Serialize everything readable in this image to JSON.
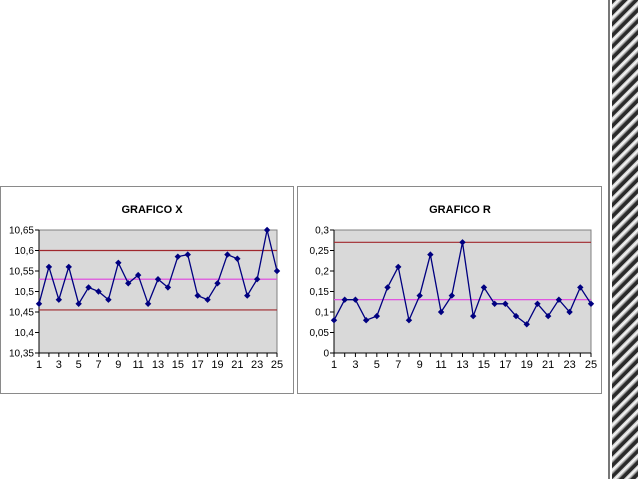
{
  "colors": {
    "plot_bg": "#d9d9d9",
    "series": "#000080",
    "control_limit": "#a0282d",
    "center_line": "#e040e0"
  },
  "chart_data": [
    {
      "type": "line",
      "title": "GRAFICO X",
      "x": [
        1,
        2,
        3,
        4,
        5,
        6,
        7,
        8,
        9,
        10,
        11,
        12,
        13,
        14,
        15,
        16,
        17,
        18,
        19,
        20,
        21,
        22,
        23,
        24,
        25
      ],
      "xticks": [
        1,
        3,
        5,
        7,
        9,
        11,
        13,
        15,
        17,
        19,
        21,
        23,
        25
      ],
      "series": [
        {
          "values": [
            10.47,
            10.56,
            10.48,
            10.56,
            10.47,
            10.51,
            10.5,
            10.48,
            10.57,
            10.52,
            10.54,
            10.47,
            10.53,
            10.51,
            10.585,
            10.59,
            10.49,
            10.48,
            10.52,
            10.59,
            10.58,
            10.49,
            10.53,
            10.65,
            10.55
          ]
        }
      ],
      "ucl": 10.6,
      "center": 10.53,
      "lcl": 10.455,
      "ylim": [
        10.35,
        10.65
      ],
      "yticks": [
        10.35,
        10.4,
        10.45,
        10.5,
        10.55,
        10.6,
        10.65
      ],
      "ytick_labels": [
        "10,35",
        "10,4",
        "10,45",
        "10,5",
        "10,55",
        "10,6",
        "10,65"
      ],
      "grid": false
    },
    {
      "type": "line",
      "title": "GRAFICO R",
      "x": [
        1,
        2,
        3,
        4,
        5,
        6,
        7,
        8,
        9,
        10,
        11,
        12,
        13,
        14,
        15,
        16,
        17,
        18,
        19,
        20,
        21,
        22,
        23,
        24,
        25
      ],
      "xticks": [
        1,
        3,
        5,
        7,
        9,
        11,
        13,
        15,
        17,
        19,
        21,
        23,
        25
      ],
      "series": [
        {
          "values": [
            0.08,
            0.13,
            0.13,
            0.08,
            0.09,
            0.16,
            0.21,
            0.08,
            0.14,
            0.24,
            0.1,
            0.14,
            0.27,
            0.09,
            0.16,
            0.12,
            0.12,
            0.09,
            0.07,
            0.12,
            0.09,
            0.13,
            0.1,
            0.16,
            0.12
          ]
        }
      ],
      "ucl": 0.27,
      "center": 0.13,
      "ylim": [
        0,
        0.3
      ],
      "yticks": [
        0,
        0.05,
        0.1,
        0.15,
        0.2,
        0.25,
        0.3
      ],
      "ytick_labels": [
        "0",
        "0,05",
        "0,1",
        "0,15",
        "0,2",
        "0,25",
        "0,3"
      ],
      "grid": false
    }
  ]
}
